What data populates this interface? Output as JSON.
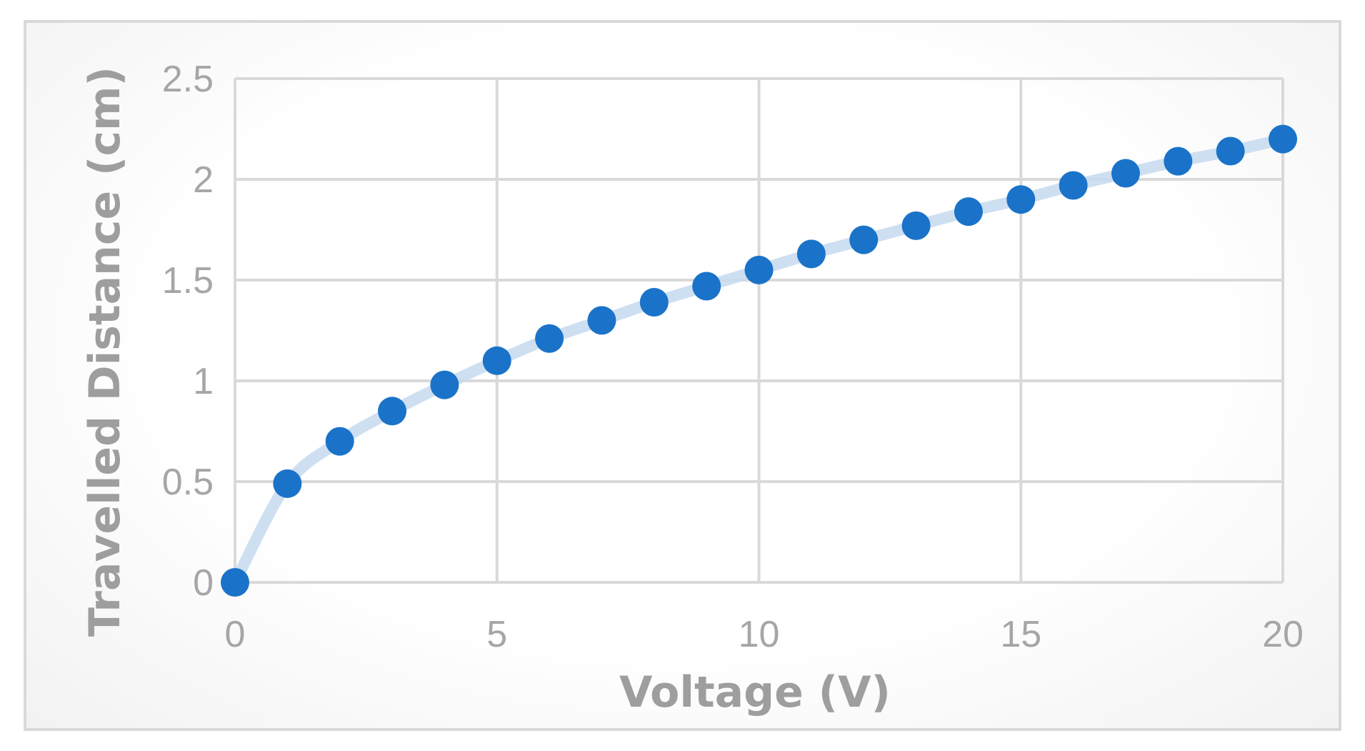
{
  "chart_data": {
    "type": "scatter",
    "xlabel": "Voltage (V)",
    "ylabel": "Travelled Distance (cm)",
    "xlim": [
      0,
      20
    ],
    "ylim": [
      0,
      2.5
    ],
    "x_ticks": [
      "0",
      "5",
      "10",
      "15",
      "20"
    ],
    "y_ticks": [
      "0",
      "0.5",
      "1",
      "1.5",
      "2",
      "2.5"
    ],
    "grid": true,
    "legend": "none",
    "colors": {
      "points": "#1a73c8",
      "trendline": "#c6d9f0",
      "grid": "#d9d9d9",
      "text": "#a6a6a6"
    },
    "series": [
      {
        "x": [
          0,
          1,
          2,
          3,
          4,
          5,
          6,
          7,
          8,
          9,
          10,
          11,
          12,
          13,
          14,
          15,
          16,
          17,
          18,
          19,
          20
        ],
        "y": [
          0,
          0.49,
          0.7,
          0.85,
          0.98,
          1.1,
          1.21,
          1.3,
          1.39,
          1.47,
          1.55,
          1.63,
          1.7,
          1.77,
          1.84,
          1.9,
          1.97,
          2.03,
          2.09,
          2.14,
          2.2
        ]
      }
    ]
  }
}
